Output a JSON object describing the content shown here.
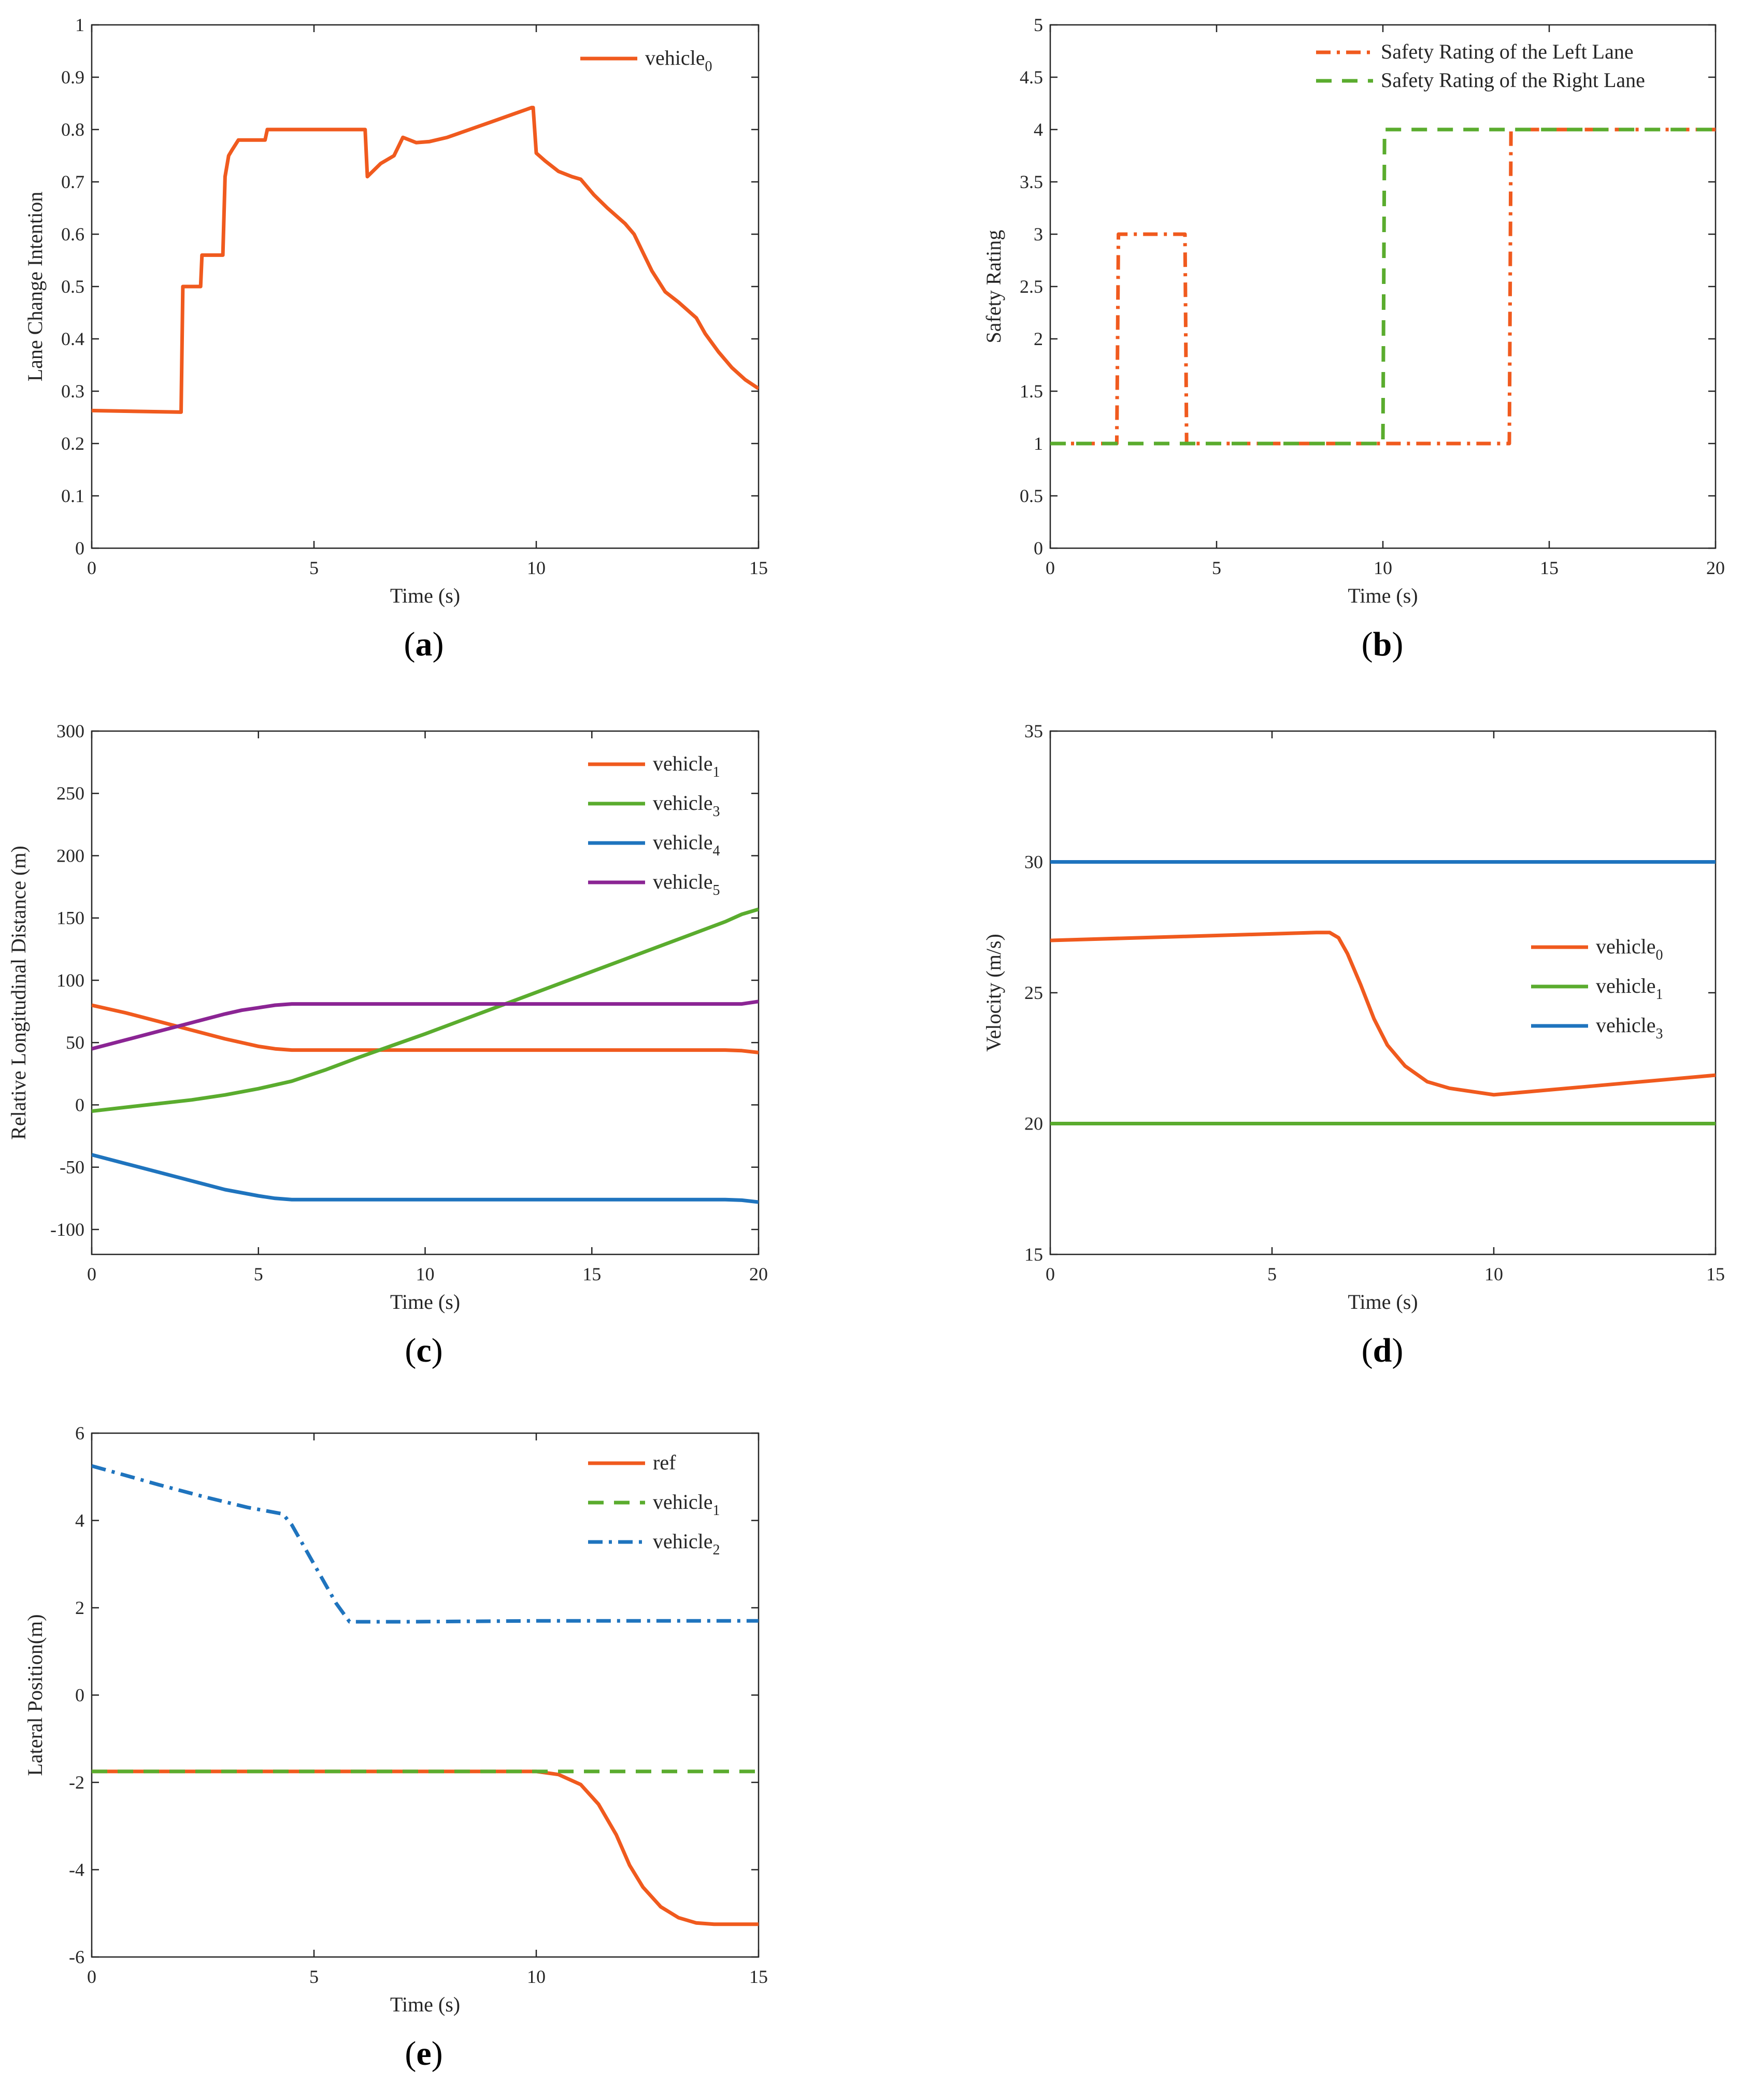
{
  "colors": {
    "orange": "#f05a1e",
    "green": "#5aac2e",
    "blue": "#1f74be",
    "purple": "#8b2594",
    "axis": "#262626"
  },
  "chart_data": [
    {
      "id": "a",
      "caption": "a",
      "type": "line",
      "xlabel": "Time (s)",
      "ylabel": "Lane Change Intention",
      "xlim": [
        0,
        15
      ],
      "ylim": [
        0,
        1
      ],
      "xticks": [
        0,
        5,
        10,
        15
      ],
      "yticks": [
        0,
        0.1,
        0.2,
        0.3,
        0.4,
        0.5,
        0.6,
        0.7,
        0.8,
        0.9,
        1
      ],
      "legend_position": "top-right",
      "series": [
        {
          "name": "vehicle",
          "sub": "0",
          "color": "orange",
          "dash": "solid",
          "x": [
            0,
            2,
            2.01,
            2.05,
            2.45,
            2.48,
            2.95,
            3.0,
            3.08,
            3.15,
            3.3,
            3.4,
            3.9,
            3.95,
            4.5,
            6.1,
            6.15,
            6.2,
            6.5,
            6.8,
            7.0,
            7.3,
            7.6,
            8.0,
            8.5,
            9.0,
            9.5,
            9.9,
            9.93,
            10.0,
            10.2,
            10.5,
            10.8,
            11.0,
            11.3,
            11.6,
            12.0,
            12.2,
            12.4,
            12.6,
            12.9,
            13.2,
            13.6,
            13.8,
            14.1,
            14.4,
            14.7,
            15.0
          ],
          "y": [
            0.263,
            0.26,
            0.26,
            0.5,
            0.5,
            0.56,
            0.56,
            0.71,
            0.75,
            0.76,
            0.78,
            0.78,
            0.78,
            0.8,
            0.8,
            0.8,
            0.8,
            0.71,
            0.735,
            0.75,
            0.785,
            0.775,
            0.777,
            0.785,
            0.8,
            0.815,
            0.83,
            0.842,
            0.842,
            0.755,
            0.74,
            0.72,
            0.71,
            0.705,
            0.675,
            0.65,
            0.62,
            0.6,
            0.565,
            0.53,
            0.49,
            0.47,
            0.44,
            0.41,
            0.375,
            0.345,
            0.322,
            0.305
          ]
        }
      ]
    },
    {
      "id": "b",
      "caption": "b",
      "type": "line",
      "xlabel": "Time (s)",
      "ylabel": "Safety Rating",
      "xlim": [
        0,
        20
      ],
      "ylim": [
        0,
        5
      ],
      "xticks": [
        0,
        5,
        10,
        15,
        20
      ],
      "yticks": [
        0,
        0.5,
        1,
        1.5,
        2,
        2.5,
        3,
        3.5,
        4,
        4.5,
        5
      ],
      "legend_position": "top-right",
      "series": [
        {
          "name": "Safety Rating of the Left Lane",
          "sub": "",
          "color": "orange",
          "dash": "dashdot",
          "x": [
            0,
            2.0,
            2.05,
            4.05,
            4.1,
            13.8,
            13.85,
            20
          ],
          "y": [
            1,
            1,
            3,
            3,
            1,
            1,
            4,
            4
          ]
        },
        {
          "name": "Safety Rating of the Right Lane",
          "sub": "",
          "color": "green",
          "dash": "dashed",
          "x": [
            0,
            10.0,
            10.05,
            20
          ],
          "y": [
            1,
            1,
            4,
            4
          ]
        }
      ]
    },
    {
      "id": "c",
      "caption": "c",
      "type": "line",
      "xlabel": "Time (s)",
      "ylabel": "Relative Longitudinal Distance (m)",
      "xlim": [
        0,
        20
      ],
      "ylim": [
        -120,
        300
      ],
      "xticks": [
        0,
        5,
        10,
        15,
        20
      ],
      "yticks": [
        -100,
        -50,
        0,
        50,
        100,
        150,
        200,
        250,
        300
      ],
      "legend_position": "top-right",
      "series": [
        {
          "name": "vehicle",
          "sub": "1",
          "color": "orange",
          "dash": "solid",
          "x": [
            0,
            1,
            2,
            3,
            4,
            5,
            5.5,
            6,
            7,
            10,
            15,
            19,
            19.5,
            20
          ],
          "y": [
            80,
            74,
            67,
            60,
            53,
            47,
            45,
            44,
            44,
            44,
            44,
            44,
            43.5,
            42
          ]
        },
        {
          "name": "vehicle",
          "sub": "3",
          "color": "green",
          "dash": "solid",
          "x": [
            0,
            1,
            2,
            3,
            4,
            5,
            6,
            7,
            8,
            10,
            12,
            14,
            16,
            18,
            19,
            19.5,
            20
          ],
          "y": [
            -5,
            -2,
            1,
            4,
            8,
            13,
            19,
            28,
            38,
            57,
            77,
            97,
            117,
            137,
            147,
            153,
            157
          ]
        },
        {
          "name": "vehicle",
          "sub": "4",
          "color": "blue",
          "dash": "solid",
          "x": [
            0,
            1,
            2,
            3,
            4,
            5,
            5.5,
            6,
            7,
            10,
            15,
            19,
            19.5,
            20
          ],
          "y": [
            -40,
            -47,
            -54,
            -61,
            -68,
            -73,
            -75,
            -76,
            -76,
            -76,
            -76,
            -76,
            -76.5,
            -78
          ]
        },
        {
          "name": "vehicle",
          "sub": "5",
          "color": "purple",
          "dash": "solid",
          "x": [
            0,
            1,
            2,
            3,
            4,
            4.5,
            5,
            5.5,
            6,
            7,
            10,
            15,
            19.5,
            20
          ],
          "y": [
            45,
            52,
            59,
            66,
            73,
            76,
            78,
            80,
            81,
            81,
            81,
            81,
            81,
            83
          ]
        }
      ]
    },
    {
      "id": "d",
      "caption": "d",
      "type": "line",
      "xlabel": "Time (s)",
      "ylabel": "Velocity (m/s)",
      "xlim": [
        0,
        15
      ],
      "ylim": [
        15,
        35
      ],
      "xticks": [
        0,
        5,
        10,
        15
      ],
      "yticks": [
        15,
        20,
        25,
        30,
        35
      ],
      "legend_position": "right",
      "series": [
        {
          "name": "vehicle",
          "sub": "0",
          "color": "orange",
          "dash": "solid",
          "x": [
            0,
            3,
            6.0,
            6.3,
            6.5,
            6.7,
            7.0,
            7.3,
            7.6,
            8.0,
            8.5,
            9.0,
            10.0,
            11,
            12,
            13,
            14,
            15
          ],
          "y": [
            27,
            27.15,
            27.3,
            27.3,
            27.1,
            26.5,
            25.3,
            24.0,
            23.0,
            22.2,
            21.6,
            21.35,
            21.1,
            21.25,
            21.4,
            21.55,
            21.7,
            21.85
          ]
        },
        {
          "name": "vehicle",
          "sub": "1",
          "color": "green",
          "dash": "solid",
          "x": [
            0,
            15
          ],
          "y": [
            20,
            20
          ]
        },
        {
          "name": "vehicle",
          "sub": "3",
          "color": "blue",
          "dash": "solid",
          "x": [
            0,
            15
          ],
          "y": [
            30,
            30
          ]
        }
      ]
    },
    {
      "id": "e",
      "caption": "e",
      "type": "line",
      "xlabel": "Time (s)",
      "ylabel": "Lateral Position(m)",
      "xlim": [
        0,
        15
      ],
      "ylim": [
        -6,
        6
      ],
      "xticks": [
        0,
        5,
        10,
        15
      ],
      "yticks": [
        -6,
        -4,
        -2,
        0,
        2,
        4,
        6
      ],
      "legend_position": "top-right",
      "series": [
        {
          "name": "ref",
          "sub": "",
          "color": "orange",
          "dash": "solid",
          "x": [
            0,
            5,
            10,
            10.5,
            11,
            11.4,
            11.8,
            12.1,
            12.4,
            12.8,
            13.2,
            13.6,
            14.0,
            14.5,
            15.0
          ],
          "y": [
            -1.75,
            -1.75,
            -1.75,
            -1.82,
            -2.05,
            -2.5,
            -3.2,
            -3.9,
            -4.4,
            -4.85,
            -5.1,
            -5.22,
            -5.25,
            -5.25,
            -5.25
          ]
        },
        {
          "name": "vehicle",
          "sub": "1",
          "color": "green",
          "dash": "dashed",
          "x": [
            0,
            15
          ],
          "y": [
            -1.75,
            -1.75
          ]
        },
        {
          "name": "vehicle",
          "sub": "2",
          "color": "blue",
          "dash": "dashdot",
          "x": [
            0,
            0.7,
            1.5,
            2.5,
            3.5,
            4.3,
            4.5,
            5.0,
            5.5,
            5.8,
            7,
            10,
            13,
            15
          ],
          "y": [
            5.25,
            5.05,
            4.82,
            4.55,
            4.3,
            4.15,
            3.9,
            3.0,
            2.1,
            1.68,
            1.68,
            1.7,
            1.7,
            1.7
          ]
        }
      ]
    }
  ]
}
